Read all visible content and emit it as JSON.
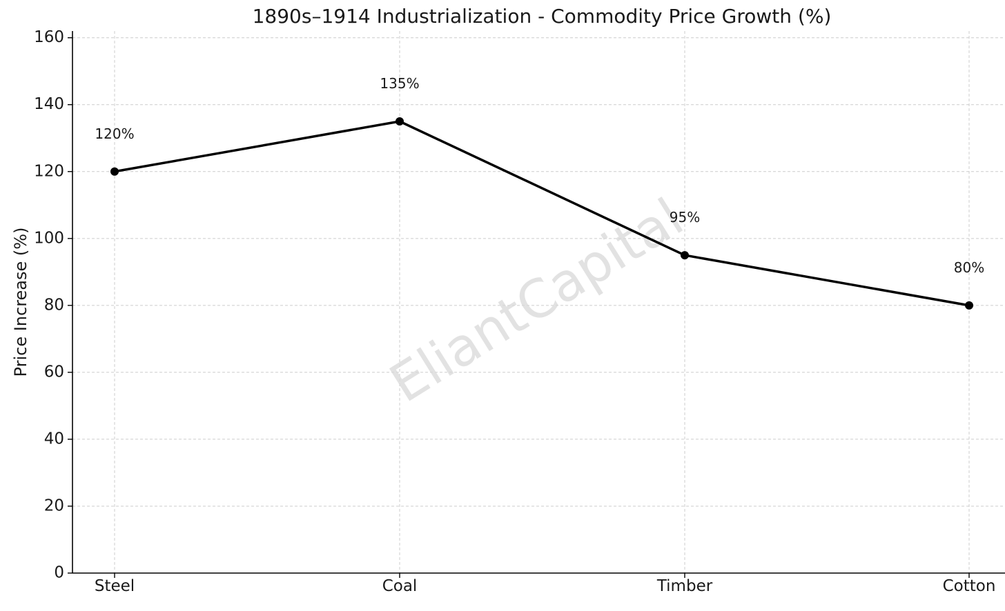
{
  "chart_data": {
    "type": "line",
    "title": "1890s–1914 Industrialization - Commodity Price Growth (%)",
    "xlabel": "",
    "ylabel": "Price Increase (%)",
    "categories": [
      "Steel",
      "Coal",
      "Timber",
      "Cotton"
    ],
    "series": [
      {
        "values": [
          120,
          135,
          95,
          80
        ],
        "color": "#000000"
      }
    ],
    "data_labels": [
      "120%",
      "135%",
      "95%",
      "80%"
    ],
    "ylim": [
      0,
      162
    ],
    "yticks": [
      0,
      20,
      40,
      60,
      80,
      100,
      120,
      140,
      160
    ],
    "ytick_labels": [
      "0",
      "20",
      "40",
      "60",
      "80",
      "100",
      "120",
      "140",
      "160"
    ],
    "grid": true,
    "legend": "none"
  },
  "watermark": {
    "text": "EliantCapital",
    "color": "#d9d9d9"
  },
  "colors": {
    "grid": "#cccccc",
    "axis": "#000000",
    "text": "#1a1a1a"
  }
}
